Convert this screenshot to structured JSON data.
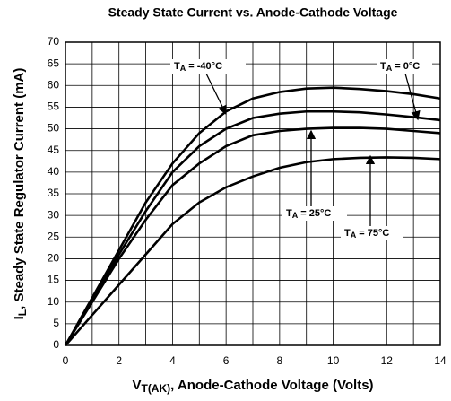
{
  "chart_data": {
    "type": "line",
    "title": "Steady State Current vs. Anode-Cathode Voltage",
    "x_label": {
      "base": "V",
      "sub": "T(AK)",
      "rest": ", Anode-Cathode Voltage (Volts)"
    },
    "y_label": {
      "base": "I",
      "sub": "L",
      "rest": ", Steady State Regulator Current  (mA)"
    },
    "x": [
      0,
      1,
      2,
      3,
      4,
      5,
      6,
      7,
      8,
      9,
      10,
      11,
      12,
      13,
      14
    ],
    "series": [
      {
        "name": "T_A = -40°C",
        "color": "#000000",
        "values": [
          0,
          11,
          22,
          33,
          42,
          49,
          54,
          57,
          58.5,
          59.3,
          59.5,
          59.2,
          58.7,
          58,
          57
        ]
      },
      {
        "name": "T_A = 0°C",
        "color": "#000000",
        "values": [
          0,
          10.5,
          21,
          31,
          40,
          46,
          50,
          52.5,
          53.5,
          54,
          54,
          53.8,
          53.3,
          52.7,
          52
        ]
      },
      {
        "name": "T_A = 25°C",
        "color": "#000000",
        "values": [
          0,
          10,
          20,
          29,
          37,
          42,
          46,
          48.5,
          49.5,
          50,
          50.2,
          50.2,
          50,
          49.5,
          49
        ]
      },
      {
        "name": "T_A = 75°C",
        "color": "#000000",
        "values": [
          0,
          7,
          14,
          21,
          28,
          33,
          36.5,
          39,
          41,
          42.3,
          43,
          43.3,
          43.4,
          43.3,
          43
        ]
      }
    ],
    "annotations": [
      {
        "base": "T",
        "sub": "A",
        "text": " = -40°C"
      },
      {
        "base": "T",
        "sub": "A",
        "text": " = 0°C"
      },
      {
        "base": "T",
        "sub": "A",
        "text": " = 25°C"
      },
      {
        "base": "T",
        "sub": "A",
        "text": " = 75°C"
      }
    ],
    "xlim": [
      0,
      14
    ],
    "ylim": [
      0,
      70
    ],
    "xticks": [
      0,
      2,
      4,
      6,
      8,
      10,
      12,
      14
    ],
    "xgrid": [
      0,
      1,
      2,
      3,
      4,
      5,
      6,
      7,
      8,
      9,
      10,
      11,
      12,
      13,
      14
    ],
    "yticks": [
      0,
      5,
      10,
      15,
      20,
      25,
      30,
      35,
      40,
      45,
      50,
      55,
      60,
      65,
      70
    ],
    "grid": true
  }
}
